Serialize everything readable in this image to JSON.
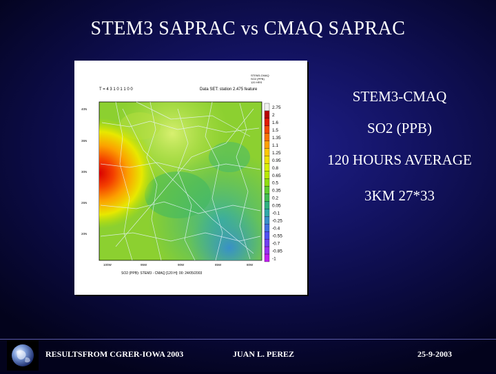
{
  "slide": {
    "title": "STEM3 SAPRAC vs CMAQ SAPRAC"
  },
  "figure": {
    "header_left": "T = 4 3 1 0 1 1 0 0",
    "header_mid": "Data SET: station 2.475 feature",
    "stamp_lines": [
      "STEM3-CMAQ",
      "SO2 (PPB)",
      "120 HRS"
    ],
    "y_ticks": [
      "40N",
      "35N",
      "30N",
      "25N",
      "20N"
    ],
    "x_ticks": [
      "100W",
      "95W",
      "90W",
      "85W",
      "80W"
    ],
    "caption": "SO2 (PPB): STEM3 - CMAQ [120 H]: 00: 24/05/2003",
    "scale_labels": [
      "2.75",
      "2",
      "1.6",
      "1.5",
      "1.35",
      "1.1",
      "1.25",
      "0.95",
      "0.8",
      "0.65",
      "0.5",
      "0.35",
      "0.2",
      "0.05",
      "-0.1",
      "-0.25",
      "-0.4",
      "-0.55",
      "-0.7",
      "-0.85",
      "-1"
    ],
    "scale_colors": [
      "#f0f0f0",
      "#b80000",
      "#e01c00",
      "#f04800",
      "#f87400",
      "#fca000",
      "#fcc800",
      "#f0e000",
      "#d8f000",
      "#b8e800",
      "#90dc10",
      "#60cc30",
      "#40bc50",
      "#30b080",
      "#30a8a8",
      "#3890c8",
      "#4070e0",
      "#5050f0",
      "#7040f0",
      "#9830f0",
      "#c020f0"
    ]
  },
  "side": {
    "lines": [
      "STEM3-CMAQ",
      "SO2 (PPB)",
      "120 HOURS AVERAGE",
      "3KM 27*33"
    ]
  },
  "footer": {
    "left": "RESULTSFROM CGRER-IOWA 2003",
    "center": "JUAN L. PEREZ",
    "right": "25-9-2003"
  },
  "colors": {
    "background": "#141466",
    "text": "#ffffff"
  }
}
